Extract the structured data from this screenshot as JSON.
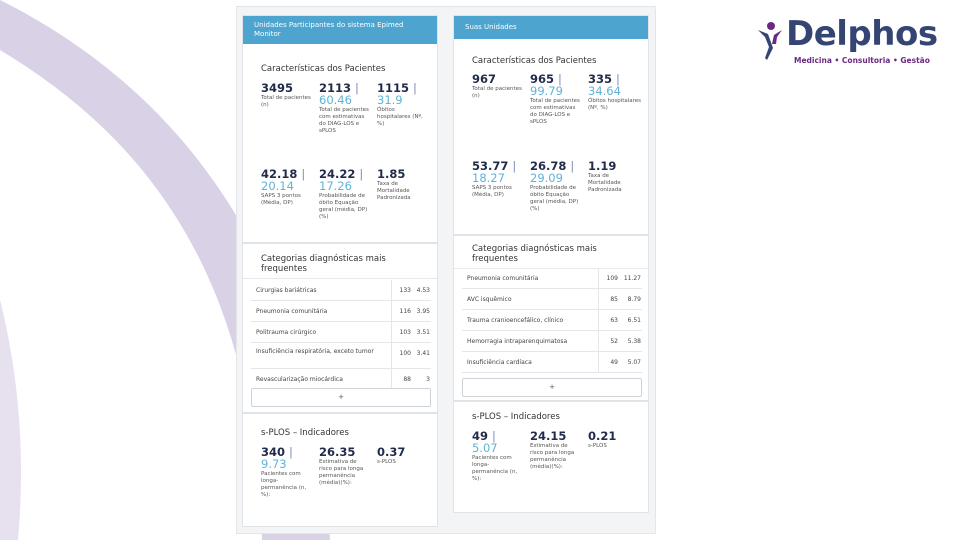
{
  "brand": {
    "name": "Delphos",
    "tagline": "Medicina • Consultoria • Gestão",
    "colors": {
      "navy": "#344573",
      "purple": "#6b2a82",
      "accent": "#4ca4cf",
      "swoosh": "#d9d1e6"
    }
  },
  "left": {
    "header": "Unidades Participantes do sistema Epimed Monitor",
    "patients": {
      "title": "Características dos Pacientes",
      "kpis": [
        {
          "main": "3495",
          "sep": "",
          "sub": "",
          "label": "Total de pacientes (n)"
        },
        {
          "main": "2113",
          "sep": "|",
          "sub": "60.46",
          "label": "Total de pacientes com estimativas do DIAG-LOS e sPLOS"
        },
        {
          "main": "1115",
          "sep": "|",
          "sub": "31.9",
          "label": "Óbitos hospitalares (Nº, %)"
        },
        {
          "main": "42.18",
          "sep": "|",
          "sub": "20.14",
          "label": "SAPS 3 pontos (Média, DP)"
        },
        {
          "main": "24.22",
          "sep": "|",
          "sub": "17.26",
          "label": "Probabilidade de óbito Equação geral (média, DP) (%)"
        },
        {
          "main": "1.85",
          "sep": "",
          "sub": "",
          "label": "Taxa de Mortalidade Padronizada"
        }
      ]
    },
    "diagnostics": {
      "title": "Categorias diagnósticas mais frequentes",
      "rows": [
        {
          "name": "Cirurgias bariátricas",
          "count": "133",
          "pct": "4.53"
        },
        {
          "name": "Pneumonia comunitária",
          "count": "116",
          "pct": "3.95"
        },
        {
          "name": "Politrauma cirúrgico",
          "count": "103",
          "pct": "3.51"
        },
        {
          "name": "Insuficiência respiratória, exceto tumor",
          "count": "100",
          "pct": "3.41"
        },
        {
          "name": "Revascularização miocárdica",
          "count": "88",
          "pct": "3"
        }
      ],
      "more": "+"
    },
    "splos": {
      "title": "s-PLOS – Indicadores",
      "kpis": [
        {
          "main": "340",
          "sep": "|",
          "sub": "9.73",
          "label": "Pacientes com longa-permanência (n, %):"
        },
        {
          "main": "26.35",
          "sep": "",
          "sub": "",
          "label": "Estimativa de risco para longa permanência (média)(%):"
        },
        {
          "main": "0.37",
          "sep": "",
          "sub": "",
          "label": "s-PLOS"
        }
      ]
    }
  },
  "right": {
    "header": "Suas Unidades",
    "patients": {
      "title": "Características dos Pacientes",
      "kpis": [
        {
          "main": "967",
          "sep": "",
          "sub": "",
          "label": "Total de pacientes (n)"
        },
        {
          "main": "965",
          "sep": "|",
          "sub": "99.79",
          "label": "Total de pacientes com estimativas do DIAG-LOS e sPLOS"
        },
        {
          "main": "335",
          "sep": "|",
          "sub": "34.64",
          "label": "Óbitos hospitalares (Nº, %)"
        },
        {
          "main": "53.77",
          "sep": "|",
          "sub": "18.27",
          "label": "SAPS 3 pontos (Média, DP)"
        },
        {
          "main": "26.78",
          "sep": "|",
          "sub": "29.09",
          "label": "Probabilidade de óbito Equação geral (média, DP) (%)"
        },
        {
          "main": "1.19",
          "sep": "",
          "sub": "",
          "label": "Taxa de Mortalidade Padronizada"
        }
      ]
    },
    "diagnostics": {
      "title": "Categorias diagnósticas mais frequentes",
      "rows": [
        {
          "name": "Pneumonia comunitária",
          "count": "109",
          "pct": "11.27"
        },
        {
          "name": "AVC isquêmico",
          "count": "85",
          "pct": "8.79"
        },
        {
          "name": "Trauma cranioencefálico, clínico",
          "count": "63",
          "pct": "6.51"
        },
        {
          "name": "Hemorragia intraparenquimatosa",
          "count": "52",
          "pct": "5.38"
        },
        {
          "name": "Insuficiência cardíaca",
          "count": "49",
          "pct": "5.07"
        }
      ],
      "more": "+"
    },
    "splos": {
      "title": "s-PLOS – Indicadores",
      "kpis": [
        {
          "main": "49",
          "sep": "|",
          "sub": "5.07",
          "label": "Pacientes com longa-permanência (n, %):"
        },
        {
          "main": "24.15",
          "sep": "",
          "sub": "",
          "label": "Estimativa de risco para longa permanência (média)(%):"
        },
        {
          "main": "0.21",
          "sep": "",
          "sub": "",
          "label": "s-PLOS"
        }
      ]
    }
  }
}
